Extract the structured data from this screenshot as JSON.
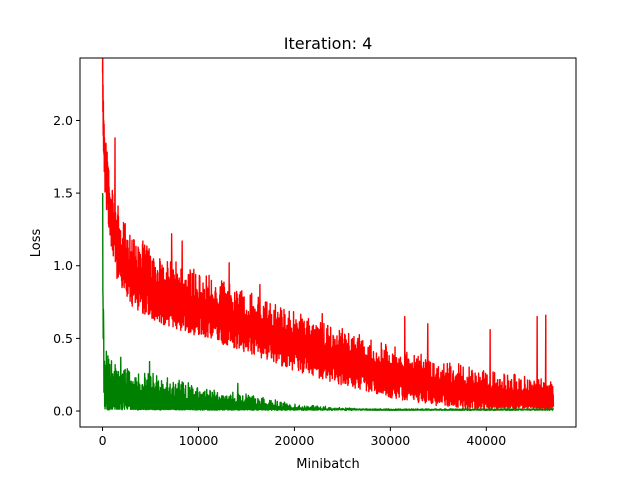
{
  "chart_data": {
    "type": "line",
    "title": "Iteration: 4",
    "xlabel": "Minibatch",
    "ylabel": "Loss",
    "xlim": [
      -2350,
      49350
    ],
    "ylim": [
      -0.11,
      2.43
    ],
    "x_ticks": [
      0,
      10000,
      20000,
      30000,
      40000
    ],
    "x_tick_labels": [
      "0",
      "10000",
      "20000",
      "30000",
      "40000"
    ],
    "y_ticks": [
      0.0,
      0.5,
      1.0,
      1.5,
      2.0
    ],
    "y_tick_labels": [
      "0.0",
      "0.5",
      "1.0",
      "1.5",
      "2.0"
    ],
    "x_max": 47000,
    "grid": false,
    "legend": "none",
    "series": [
      {
        "color": "#ff0000",
        "trend": [
          [
            0,
            2.33
          ],
          [
            150,
            1.85
          ],
          [
            400,
            1.62
          ],
          [
            800,
            1.4
          ],
          [
            1500,
            1.15
          ],
          [
            3000,
            0.95
          ],
          [
            6000,
            0.82
          ],
          [
            10000,
            0.72
          ],
          [
            15000,
            0.6
          ],
          [
            20000,
            0.47
          ],
          [
            25000,
            0.36
          ],
          [
            30000,
            0.26
          ],
          [
            35000,
            0.18
          ],
          [
            40000,
            0.12
          ],
          [
            45000,
            0.09
          ],
          [
            47000,
            0.07
          ]
        ],
        "band": [
          [
            0,
            0.35
          ],
          [
            2000,
            0.3
          ],
          [
            10000,
            0.27
          ],
          [
            20000,
            0.25
          ],
          [
            30000,
            0.22
          ],
          [
            40000,
            0.18
          ],
          [
            47000,
            0.15
          ]
        ],
        "spikes": [
          [
            0,
            2.33
          ],
          [
            200,
            1.88
          ],
          [
            1300,
            1.88
          ],
          [
            4200,
            1.17
          ],
          [
            7200,
            1.22
          ],
          [
            8300,
            1.17
          ],
          [
            13200,
            1.02
          ],
          [
            16400,
            0.87
          ],
          [
            22900,
            0.67
          ],
          [
            31500,
            0.65
          ],
          [
            33900,
            0.6
          ],
          [
            40400,
            0.56
          ],
          [
            45300,
            0.65
          ],
          [
            46200,
            0.66
          ]
        ]
      },
      {
        "color": "#008000",
        "trend": [
          [
            0,
            1.45
          ],
          [
            60,
            0.6
          ],
          [
            150,
            0.25
          ],
          [
            500,
            0.16
          ],
          [
            2000,
            0.12
          ],
          [
            5000,
            0.09
          ],
          [
            10000,
            0.05
          ],
          [
            15000,
            0.03
          ],
          [
            20000,
            0.012
          ],
          [
            25000,
            0.006
          ],
          [
            30000,
            0.003
          ],
          [
            40000,
            0.002
          ],
          [
            47000,
            0.001
          ]
        ],
        "band": [
          [
            0,
            0.3
          ],
          [
            1000,
            0.22
          ],
          [
            5000,
            0.2
          ],
          [
            10000,
            0.14
          ],
          [
            15000,
            0.1
          ],
          [
            20000,
            0.04
          ],
          [
            25000,
            0.02
          ],
          [
            30000,
            0.005
          ],
          [
            47000,
            0.003
          ]
        ],
        "spikes": [
          [
            0,
            1.5
          ],
          [
            100,
            0.68
          ],
          [
            1900,
            0.37
          ],
          [
            4900,
            0.34
          ],
          [
            8300,
            0.2
          ],
          [
            14100,
            0.19
          ]
        ]
      }
    ]
  }
}
